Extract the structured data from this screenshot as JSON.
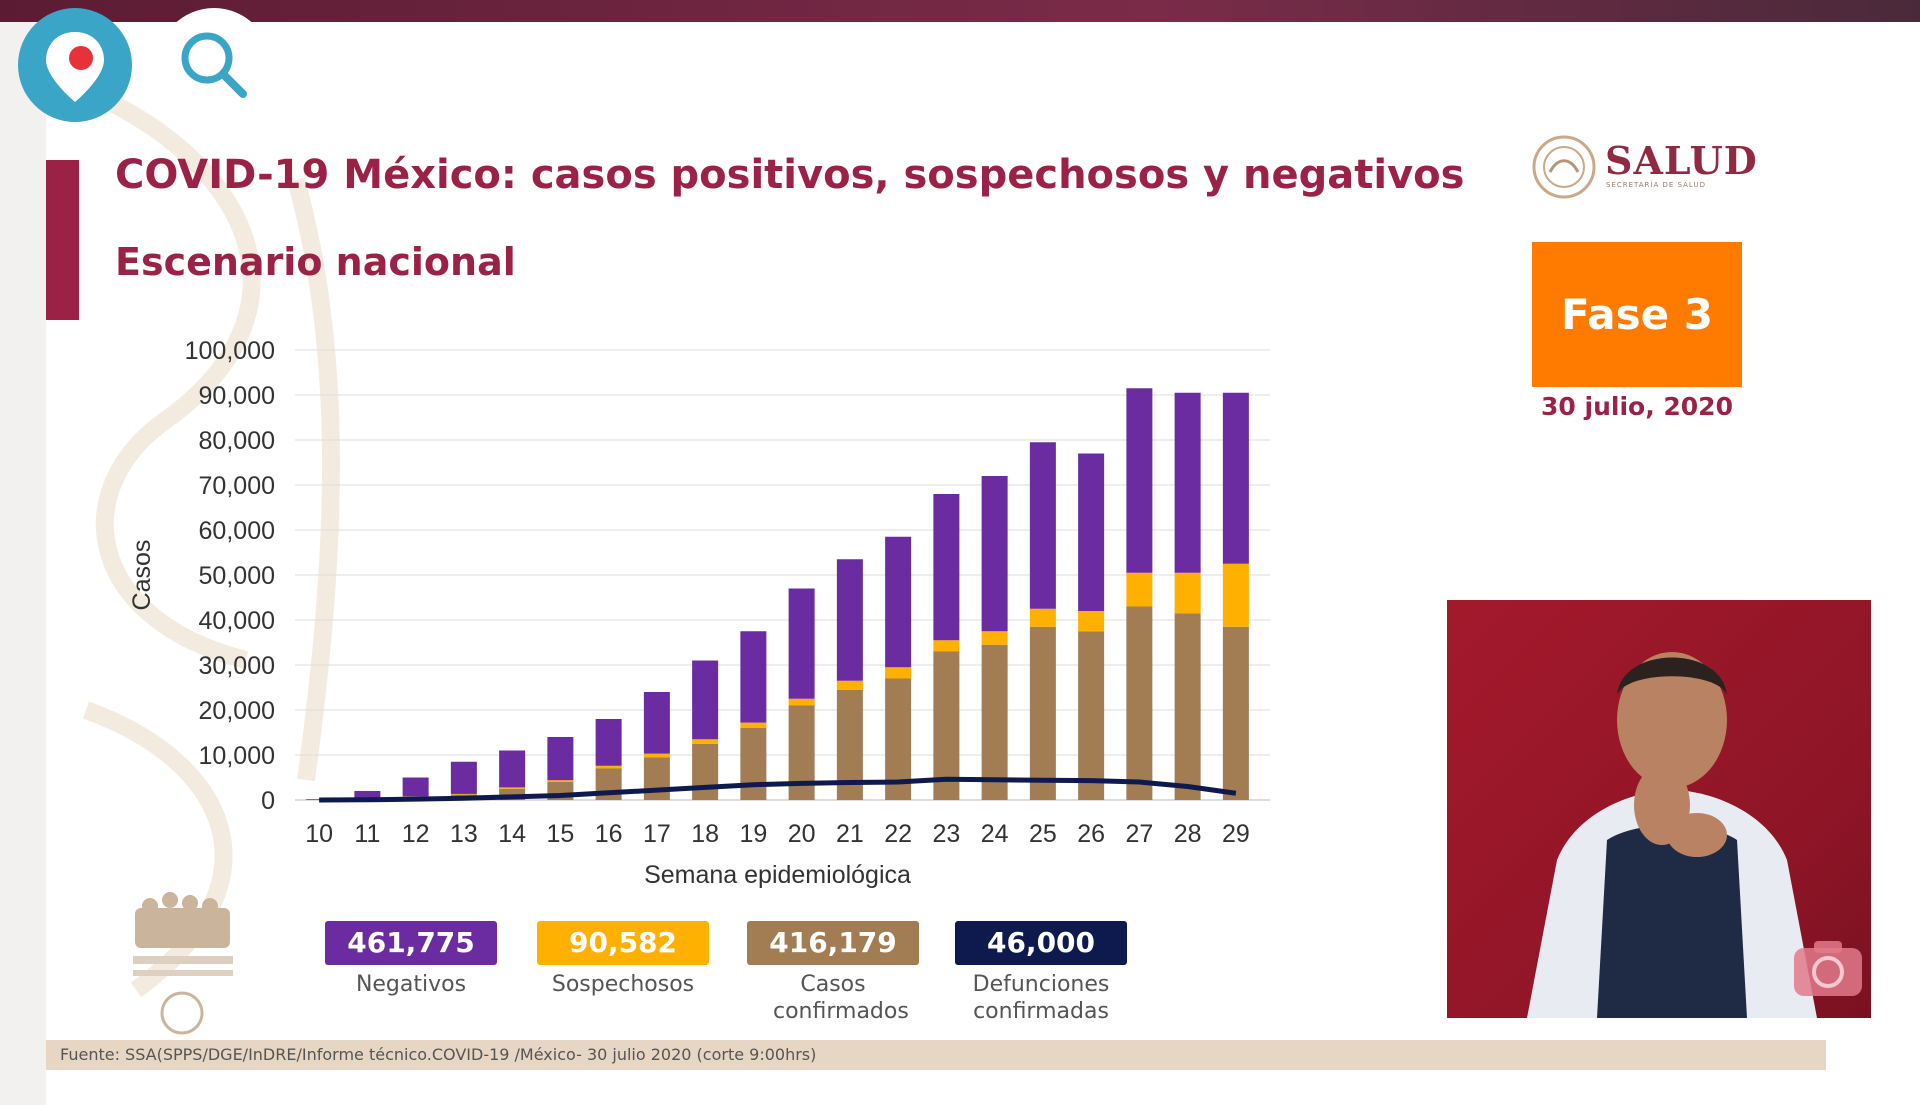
{
  "title": "COVID-19 México: casos positivos, sospechosos y negativos",
  "subtitle": "Escenario nacional",
  "logo": {
    "name": "SALUD",
    "sub": "SECRETARÍA DE SALUD"
  },
  "phase": "Fase 3",
  "date": "30 julio, 2020",
  "stats": [
    {
      "value": "461,775",
      "label": "Negativos",
      "color": "#6a2ca0"
    },
    {
      "value": "90,582",
      "label": "Sospechosos",
      "color": "#ffb000"
    },
    {
      "value": "416,179",
      "label": "Casos confirmados",
      "color": "#a27c53"
    },
    {
      "value": "46,000",
      "label": "Defunciones confirmadas",
      "color": "#0e1a4e"
    }
  ],
  "footer": "Fuente: SSA(SPPS/DGE/InDRE/Informe técnico.COVID-19 /México- 30 julio 2020 (corte 9:00hrs)",
  "colors": {
    "accent": "#9b2246",
    "phase": "#ff7b00"
  },
  "icons": [
    "periscope-icon",
    "search-icon",
    "camera-icon"
  ],
  "chart_data": {
    "type": "bar",
    "stacked": true,
    "xlabel": "Semana epidemiológica",
    "ylabel": "Casos",
    "ylim": [
      0,
      100000
    ],
    "yticks": [
      "0",
      "10,000",
      "20,000",
      "30,000",
      "40,000",
      "50,000",
      "60,000",
      "70,000",
      "80,000",
      "90,000",
      "100,000"
    ],
    "categories": [
      "10",
      "11",
      "12",
      "13",
      "14",
      "15",
      "16",
      "17",
      "18",
      "19",
      "20",
      "21",
      "22",
      "23",
      "24",
      "25",
      "26",
      "27",
      "28",
      "29"
    ],
    "series": [
      {
        "name": "Casos confirmados",
        "color": "#a27c53",
        "values": [
          50,
          300,
          700,
          1200,
          2500,
          4000,
          7000,
          9500,
          12500,
          16000,
          21000,
          24500,
          27000,
          33000,
          34500,
          38500,
          37500,
          43000,
          41500,
          38500
        ]
      },
      {
        "name": "Sospechosos",
        "color": "#ffb000",
        "values": [
          20,
          50,
          100,
          150,
          300,
          400,
          600,
          800,
          1000,
          1200,
          1500,
          2000,
          2500,
          2500,
          3000,
          4000,
          4500,
          7500,
          9000,
          14000
        ]
      },
      {
        "name": "Negativos",
        "color": "#6a2ca0",
        "values": [
          130,
          1650,
          4200,
          7150,
          8200,
          9600,
          10400,
          13700,
          17500,
          20300,
          24500,
          27000,
          29000,
          32500,
          34500,
          37000,
          35000,
          41000,
          40000,
          38000
        ]
      },
      {
        "name": "Defunciones confirmadas",
        "type": "line",
        "color": "#0e1a4e",
        "values": [
          0,
          50,
          200,
          400,
          700,
          1000,
          1600,
          2200,
          2800,
          3400,
          3700,
          3900,
          4000,
          4600,
          4500,
          4400,
          4300,
          4000,
          3000,
          1500
        ]
      }
    ]
  }
}
